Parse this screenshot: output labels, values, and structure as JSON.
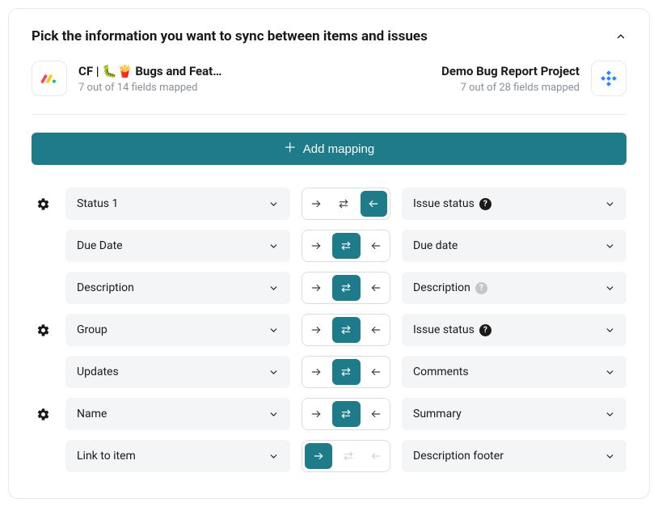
{
  "title": "Pick the information you want to sync between items and issues",
  "leftProject": {
    "name": "CF | 🐛🍟 Bugs and Feat…",
    "subtitle": "7 out of 14 fields mapped"
  },
  "rightProject": {
    "name": "Demo Bug Report Project",
    "subtitle": "7 out of 28 fields mapped"
  },
  "addButton": "Add mapping",
  "colors": {
    "accent": "#1d7b8a",
    "pillBg": "#f4f5f6",
    "border": "#e6e8ea",
    "textMuted": "#8a8f98"
  },
  "rows": [
    {
      "gear": true,
      "left": "Status 1",
      "right": "Issue status",
      "rightHelp": "dark",
      "active": "left",
      "faded": []
    },
    {
      "gear": false,
      "left": "Due Date",
      "right": "Due date",
      "rightHelp": null,
      "active": "both",
      "faded": []
    },
    {
      "gear": false,
      "left": "Description",
      "right": "Description",
      "rightHelp": "grey",
      "active": "both",
      "faded": []
    },
    {
      "gear": true,
      "left": "Group",
      "right": "Issue status",
      "rightHelp": "dark",
      "active": "both",
      "faded": []
    },
    {
      "gear": false,
      "left": "Updates",
      "right": "Comments",
      "rightHelp": null,
      "active": "both",
      "faded": []
    },
    {
      "gear": true,
      "left": "Name",
      "right": "Summary",
      "rightHelp": null,
      "active": "both",
      "faded": []
    },
    {
      "gear": false,
      "left": "Link to item",
      "right": "Description footer",
      "rightHelp": null,
      "active": "right",
      "faded": [
        "both",
        "left"
      ]
    }
  ]
}
